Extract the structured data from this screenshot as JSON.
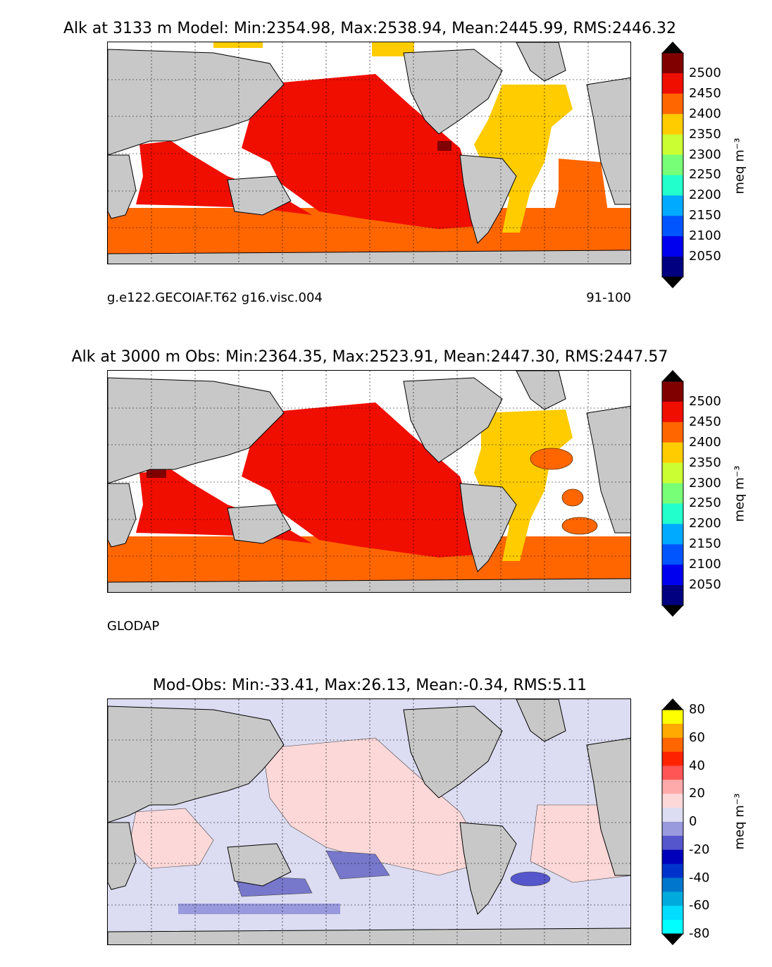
{
  "panels": [
    {
      "title": "Alk at 3133 m Model: Min:2354.98, Max:2538.94, Mean:2445.99, RMS:2446.32",
      "subtitle_left": "g.e122.GECOIAF.T62 g16.visc.004",
      "subtitle_right": "91-100",
      "colorbar": {
        "unit": "meq m⁻³",
        "ticks": [
          "2500",
          "2450",
          "2400",
          "2350",
          "2300",
          "2250",
          "2200",
          "2150",
          "2100",
          "2050"
        ],
        "colors": [
          "#800000",
          "#f00e00",
          "#ff6600",
          "#ffcc00",
          "#ccff33",
          "#77ff77",
          "#22ffcc",
          "#00aaff",
          "#0055ff",
          "#0000ee",
          "#000080"
        ]
      }
    },
    {
      "title": "Alk at 3000 m Obs: Min:2364.35, Max:2523.91, Mean:2447.30, RMS:2447.57",
      "subtitle_left": "GLODAP",
      "subtitle_right": "",
      "colorbar": {
        "unit": "meq m⁻³",
        "ticks": [
          "2500",
          "2450",
          "2400",
          "2350",
          "2300",
          "2250",
          "2200",
          "2150",
          "2100",
          "2050"
        ],
        "colors": [
          "#800000",
          "#f00e00",
          "#ff6600",
          "#ffcc00",
          "#ccff33",
          "#77ff77",
          "#22ffcc",
          "#00aaff",
          "#0055ff",
          "#0000ee",
          "#000080"
        ]
      }
    },
    {
      "title": "Mod-Obs: Min:-33.41, Max:26.13, Mean:-0.34, RMS:5.11",
      "subtitle_left": "",
      "subtitle_right": "",
      "colorbar": {
        "unit": "meq m⁻³",
        "ticks": [
          "80",
          "60",
          "40",
          "20",
          "0",
          "-20",
          "-40",
          "-60",
          "-80"
        ],
        "colors": [
          "#ffff00",
          "#ffaa00",
          "#ff6600",
          "#ff2200",
          "#ff5555",
          "#ffaaaa",
          "#fdd8d8",
          "#dcdcf2",
          "#9999dd",
          "#5555cc",
          "#0000bb",
          "#0033cc",
          "#0077cc",
          "#00aadd",
          "#00ddff",
          "#00ffff"
        ]
      }
    }
  ],
  "colors": {
    "land": "#c8c8c8",
    "missing": "#ffffff",
    "model_pacific": "#f00e00",
    "model_atlantic": "#ffcc00",
    "model_southern": "#ff6600",
    "diff_positive": "#fdd8d8",
    "diff_negative": "#dcdcf2",
    "diff_strong_negative": "#7777cc"
  }
}
